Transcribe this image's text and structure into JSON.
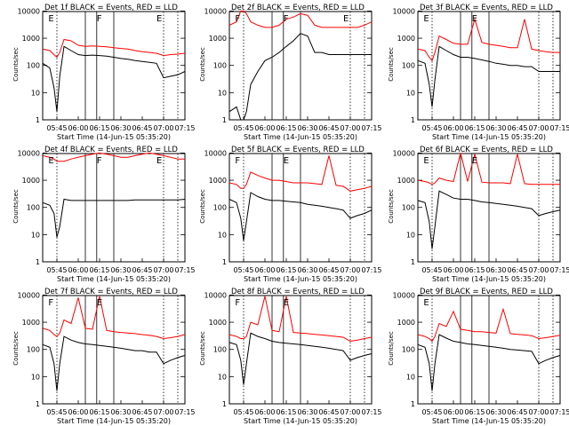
{
  "figure": {
    "ylabel": "Counts/sec",
    "xlabel": "Start Time (14-Jun-15 05:35:20)",
    "x_ticks": [
      "05:45",
      "06:00",
      "06:15",
      "06:30",
      "06:45",
      "07:00",
      "07:15"
    ],
    "y_ticks": [
      "1",
      "10",
      "100",
      "1000",
      "10000"
    ],
    "colors": {
      "events": "#000000",
      "lld": "#ff0000",
      "axes": "#000000"
    }
  },
  "chart_data": [
    {
      "type": "line",
      "title": "Det 1f BLACK = Events, RED = LLD",
      "markers": [
        "E",
        "F",
        "E"
      ],
      "xlabel": "Start Time (14-Jun-15 05:35:20)",
      "ylabel": "Counts/sec",
      "xlim": [
        "05:35",
        "07:15"
      ],
      "ylim": [
        1,
        12000
      ],
      "ylog": true,
      "x": [
        "05:35",
        "05:40",
        "05:43",
        "05:45",
        "05:47",
        "05:50",
        "05:55",
        "06:00",
        "06:05",
        "06:10",
        "06:15",
        "06:20",
        "06:25",
        "06:30",
        "06:35",
        "06:40",
        "06:45",
        "06:50",
        "06:55",
        "07:00",
        "07:05",
        "07:10",
        "07:15"
      ],
      "series": [
        {
          "name": "Events",
          "color": "#000000",
          "values": [
            120,
            80,
            15,
            2,
            40,
            500,
            350,
            250,
            230,
            240,
            230,
            220,
            200,
            180,
            170,
            150,
            140,
            130,
            120,
            35,
            40,
            45,
            60
          ]
        },
        {
          "name": "LLD",
          "color": "#ff0000",
          "values": [
            400,
            350,
            250,
            200,
            300,
            900,
            800,
            550,
            500,
            520,
            500,
            480,
            450,
            420,
            400,
            350,
            320,
            300,
            280,
            230,
            250,
            260,
            280
          ]
        }
      ]
    },
    {
      "type": "line",
      "title": "Det 2f BLACK = Events, RED = LLD",
      "markers": [
        "F",
        "F",
        "E"
      ],
      "xlabel": "Start Time (14-Jun-15 05:35:20)",
      "ylabel": "Counts/sec",
      "xlim": [
        "05:35",
        "07:15"
      ],
      "ylim": [
        1,
        12000
      ],
      "ylog": true,
      "x": [
        "05:35",
        "05:40",
        "05:43",
        "05:45",
        "05:47",
        "05:50",
        "05:55",
        "06:00",
        "06:05",
        "06:10",
        "06:15",
        "06:20",
        "06:25",
        "06:30",
        "06:35",
        "06:40",
        "06:45",
        "06:50",
        "06:55",
        "07:00",
        "07:05",
        "07:10",
        "07:15"
      ],
      "series": [
        {
          "name": "Events",
          "color": "#000000",
          "values": [
            2,
            3,
            1,
            1,
            2,
            20,
            60,
            150,
            200,
            300,
            500,
            800,
            1500,
            1200,
            300,
            300,
            250,
            250,
            250,
            250,
            250,
            250,
            250
          ]
        },
        {
          "name": "LLD",
          "color": "#ff0000",
          "values": [
            3000,
            4000,
            10000,
            10000,
            8000,
            4000,
            3000,
            2500,
            2500,
            3000,
            5000,
            6000,
            8000,
            7000,
            3000,
            2500,
            2500,
            2500,
            2500,
            2500,
            2500,
            3000,
            4000
          ]
        }
      ]
    },
    {
      "type": "line",
      "title": "Det 3f BLACK = Events, RED = LLD",
      "markers": [
        "E",
        "E"
      ],
      "xlabel": "Start Time (14-Jun-15 05:35:20)",
      "ylabel": "Counts/sec",
      "xlim": [
        "05:35",
        "07:15"
      ],
      "ylim": [
        1,
        12000
      ],
      "ylog": true,
      "x": [
        "05:35",
        "05:40",
        "05:43",
        "05:45",
        "05:47",
        "05:50",
        "05:55",
        "06:00",
        "06:05",
        "06:10",
        "06:15",
        "06:20",
        "06:25",
        "06:30",
        "06:35",
        "06:40",
        "06:45",
        "06:50",
        "06:55",
        "07:00",
        "07:05",
        "07:10",
        "07:15"
      ],
      "series": [
        {
          "name": "Events",
          "color": "#000000",
          "values": [
            150,
            120,
            20,
            3,
            30,
            500,
            350,
            250,
            200,
            200,
            180,
            160,
            140,
            120,
            110,
            100,
            100,
            90,
            90,
            60,
            60,
            60,
            60
          ]
        },
        {
          "name": "LLD",
          "color": "#ff0000",
          "values": [
            400,
            350,
            200,
            150,
            300,
            1200,
            900,
            650,
            600,
            600,
            5000,
            700,
            600,
            550,
            500,
            450,
            450,
            5000,
            400,
            350,
            320,
            300,
            300
          ]
        }
      ]
    },
    {
      "type": "line",
      "title": "Det 4f BLACK = Events, RED = LLD",
      "markers": [
        "E",
        "F",
        "E"
      ],
      "xlabel": "Start Time (14-Jun-15 05:35:20)",
      "ylabel": "Counts/sec",
      "xlim": [
        "05:35",
        "07:15"
      ],
      "ylim": [
        1,
        12000
      ],
      "ylog": true,
      "x": [
        "05:35",
        "05:40",
        "05:43",
        "05:45",
        "05:47",
        "05:50",
        "05:55",
        "06:00",
        "06:05",
        "06:10",
        "06:15",
        "06:20",
        "06:25",
        "06:30",
        "06:35",
        "06:40",
        "06:45",
        "06:50",
        "06:55",
        "07:00",
        "07:05",
        "07:10",
        "07:15"
      ],
      "series": [
        {
          "name": "Events",
          "color": "#000000",
          "values": [
            150,
            120,
            60,
            8,
            20,
            200,
            180,
            180,
            180,
            180,
            180,
            180,
            180,
            180,
            180,
            190,
            190,
            190,
            190,
            190,
            190,
            190,
            200
          ]
        },
        {
          "name": "LLD",
          "color": "#ff0000",
          "values": [
            8000,
            7000,
            6000,
            5000,
            5000,
            5000,
            6000,
            7000,
            8000,
            9000,
            10000,
            9000,
            8000,
            7000,
            7000,
            8000,
            9000,
            10000,
            9000,
            8000,
            7000,
            6000,
            6000
          ]
        }
      ]
    },
    {
      "type": "line",
      "title": "Det 5f BLACK = Events, RED = LLD",
      "markers": [
        "F",
        "E"
      ],
      "xlabel": "Start Time (14-Jun-15 05:35:20)",
      "ylabel": "Counts/sec",
      "xlim": [
        "05:35",
        "07:15"
      ],
      "ylim": [
        1,
        12000
      ],
      "ylog": true,
      "x": [
        "05:35",
        "05:40",
        "05:43",
        "05:45",
        "05:47",
        "05:50",
        "05:55",
        "06:00",
        "06:05",
        "06:10",
        "06:15",
        "06:20",
        "06:25",
        "06:30",
        "06:35",
        "06:40",
        "06:45",
        "06:50",
        "06:55",
        "07:00",
        "07:05",
        "07:10",
        "07:15"
      ],
      "series": [
        {
          "name": "Events",
          "color": "#000000",
          "values": [
            200,
            150,
            40,
            6,
            30,
            350,
            250,
            200,
            180,
            180,
            170,
            160,
            150,
            130,
            120,
            110,
            100,
            90,
            80,
            40,
            50,
            60,
            80
          ]
        },
        {
          "name": "LLD",
          "color": "#ff0000",
          "values": [
            800,
            700,
            500,
            500,
            700,
            2000,
            1500,
            1200,
            1000,
            1000,
            900,
            800,
            800,
            800,
            750,
            700,
            8000,
            650,
            600,
            400,
            450,
            500,
            600
          ]
        }
      ]
    },
    {
      "type": "line",
      "title": "Det 6f BLACK = Events, RED = LLD",
      "markers": [
        "E",
        "E"
      ],
      "xlabel": "Start Time (14-Jun-15 05:35:20)",
      "ylabel": "Counts/sec",
      "xlim": [
        "05:35",
        "07:15"
      ],
      "ylim": [
        1,
        12000
      ],
      "ylog": true,
      "x": [
        "05:35",
        "05:40",
        "05:43",
        "05:45",
        "05:47",
        "05:50",
        "05:55",
        "06:00",
        "06:05",
        "06:10",
        "06:15",
        "06:20",
        "06:25",
        "06:30",
        "06:35",
        "06:40",
        "06:45",
        "06:50",
        "06:55",
        "07:00",
        "07:05",
        "07:10",
        "07:15"
      ],
      "series": [
        {
          "name": "Events",
          "color": "#000000",
          "values": [
            180,
            150,
            30,
            3,
            20,
            400,
            300,
            220,
            200,
            200,
            180,
            160,
            150,
            140,
            130,
            120,
            110,
            100,
            90,
            50,
            60,
            70,
            80
          ]
        },
        {
          "name": "LLD",
          "color": "#ff0000",
          "values": [
            1000,
            900,
            800,
            700,
            800,
            1200,
            1000,
            900,
            10000,
            900,
            9000,
            850,
            800,
            800,
            800,
            750,
            9000,
            750,
            700,
            700,
            700,
            700,
            700
          ]
        }
      ]
    },
    {
      "type": "line",
      "title": "Det 7f BLACK = Events, RED = LLD",
      "markers": [
        "F",
        "E"
      ],
      "xlabel": "Start Time (14-Jun-15 05:35:20)",
      "ylabel": "Counts/sec",
      "xlim": [
        "05:35",
        "07:15"
      ],
      "ylim": [
        1,
        12000
      ],
      "ylog": true,
      "x": [
        "05:35",
        "05:40",
        "05:43",
        "05:45",
        "05:47",
        "05:50",
        "05:55",
        "06:00",
        "06:05",
        "06:10",
        "06:15",
        "06:20",
        "06:25",
        "06:30",
        "06:35",
        "06:40",
        "06:45",
        "06:50",
        "06:55",
        "07:00",
        "07:05",
        "07:10",
        "07:15"
      ],
      "series": [
        {
          "name": "Events",
          "color": "#000000",
          "values": [
            150,
            120,
            30,
            3,
            30,
            300,
            220,
            180,
            160,
            150,
            140,
            130,
            120,
            110,
            100,
            90,
            90,
            80,
            80,
            30,
            40,
            50,
            60
          ]
        },
        {
          "name": "LLD",
          "color": "#ff0000",
          "values": [
            600,
            500,
            350,
            300,
            400,
            1200,
            900,
            8000,
            600,
            550,
            9000,
            500,
            450,
            420,
            400,
            380,
            350,
            330,
            300,
            250,
            270,
            300,
            350
          ]
        }
      ]
    },
    {
      "type": "line",
      "title": "Det 8f BLACK = Events, RED = LLD",
      "markers": [
        "F",
        "E"
      ],
      "xlabel": "Start Time (14-Jun-15 05:35:20)",
      "ylabel": "Counts/sec",
      "xlim": [
        "05:35",
        "07:15"
      ],
      "ylim": [
        1,
        12000
      ],
      "ylog": true,
      "x": [
        "05:35",
        "05:40",
        "05:43",
        "05:45",
        "05:47",
        "05:50",
        "05:55",
        "06:00",
        "06:05",
        "06:10",
        "06:15",
        "06:20",
        "06:25",
        "06:30",
        "06:35",
        "06:40",
        "06:45",
        "06:50",
        "06:55",
        "07:00",
        "07:05",
        "07:10",
        "07:15"
      ],
      "series": [
        {
          "name": "Events",
          "color": "#000000",
          "values": [
            180,
            150,
            40,
            5,
            30,
            400,
            300,
            250,
            200,
            180,
            170,
            160,
            150,
            140,
            130,
            120,
            110,
            100,
            90,
            40,
            50,
            60,
            70
          ]
        },
        {
          "name": "LLD",
          "color": "#ff0000",
          "values": [
            350,
            300,
            250,
            250,
            300,
            1000,
            800,
            9000,
            500,
            450,
            9000,
            420,
            400,
            380,
            360,
            340,
            320,
            300,
            280,
            200,
            220,
            250,
            280
          ]
        }
      ]
    },
    {
      "type": "line",
      "title": "Det 9f BLACK = Events, RED = LLD",
      "markers": [
        "E"
      ],
      "xlabel": "Start Time (14-Jun-15 05:35:20)",
      "ylabel": "Counts/sec",
      "xlim": [
        "05:35",
        "07:15"
      ],
      "ylim": [
        1,
        12000
      ],
      "ylog": true,
      "x": [
        "05:35",
        "05:40",
        "05:43",
        "05:45",
        "05:47",
        "05:50",
        "05:55",
        "06:00",
        "06:05",
        "06:10",
        "06:15",
        "06:20",
        "06:25",
        "06:30",
        "06:35",
        "06:40",
        "06:45",
        "06:50",
        "06:55",
        "07:00",
        "07:05",
        "07:10",
        "07:15"
      ],
      "series": [
        {
          "name": "Events",
          "color": "#000000",
          "values": [
            150,
            120,
            30,
            3,
            30,
            350,
            260,
            200,
            180,
            160,
            150,
            140,
            130,
            120,
            110,
            100,
            95,
            90,
            85,
            30,
            40,
            50,
            60
          ]
        },
        {
          "name": "LLD",
          "color": "#ff0000",
          "values": [
            350,
            300,
            250,
            200,
            300,
            900,
            700,
            2500,
            550,
            500,
            450,
            450,
            420,
            400,
            3000,
            380,
            360,
            340,
            320,
            250,
            270,
            300,
            330
          ]
        }
      ]
    }
  ]
}
